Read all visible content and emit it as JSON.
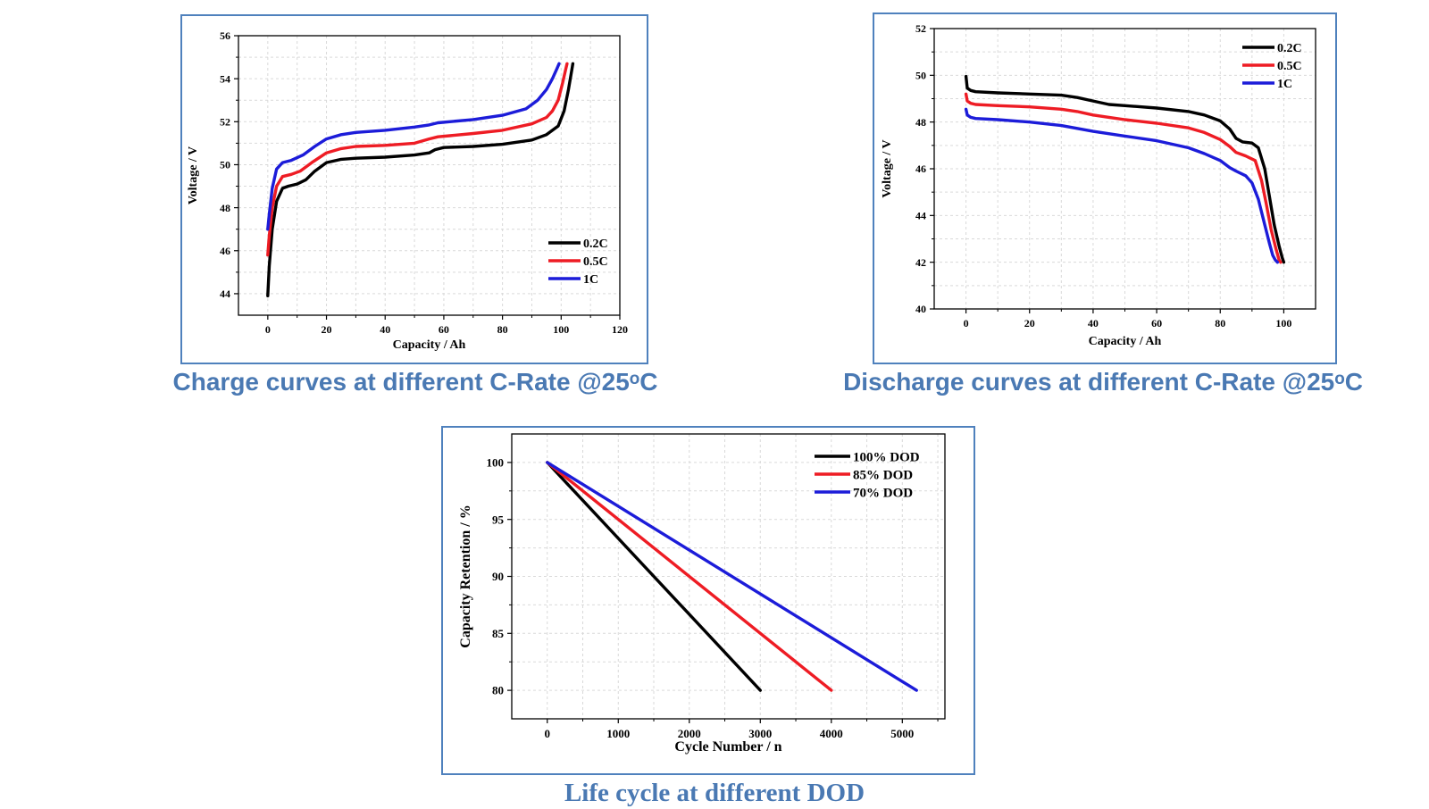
{
  "colors": {
    "black": "#000000",
    "red": "#ee1c24",
    "blue": "#1c1cd9",
    "caption": "#4a79b3",
    "frame": "#4f81bd"
  },
  "captions": {
    "charge": "Charge curves at different C-Rate @25ᵒC",
    "discharge": "Discharge curves at different C-Rate @25ᵒC",
    "life": "Life cycle at different DOD"
  },
  "chart_data": [
    {
      "id": "charge",
      "type": "line",
      "xlabel": "Capacity / Ah",
      "ylabel": "Voltage / V",
      "xlim": [
        -10,
        120
      ],
      "ylim": [
        43,
        56
      ],
      "xticks": [
        0,
        20,
        40,
        60,
        80,
        100,
        120
      ],
      "yticks": [
        44,
        46,
        48,
        50,
        52,
        54,
        56
      ],
      "grid": true,
      "legend_position": "bottom-right",
      "series": [
        {
          "name": "0.2C",
          "color": "#000000",
          "x": [
            0,
            0.5,
            1.5,
            3,
            5,
            7,
            10,
            13,
            16,
            20,
            25,
            30,
            40,
            50,
            55,
            57,
            60,
            70,
            80,
            90,
            95,
            99,
            101,
            102.5,
            103.5,
            104
          ],
          "y": [
            43.9,
            45.3,
            47.0,
            48.3,
            48.9,
            49.0,
            49.1,
            49.3,
            49.7,
            50.1,
            50.25,
            50.3,
            50.35,
            50.45,
            50.55,
            50.7,
            50.8,
            50.85,
            50.95,
            51.15,
            51.4,
            51.8,
            52.5,
            53.5,
            54.3,
            54.7
          ]
        },
        {
          "name": "0.5C",
          "color": "#ee1c24",
          "x": [
            0,
            0.5,
            1.5,
            3,
            5,
            8,
            11,
            15,
            20,
            25,
            30,
            40,
            50,
            55,
            58,
            62,
            70,
            80,
            90,
            95,
            97,
            99,
            100.5,
            101.5,
            102
          ],
          "y": [
            45.8,
            46.7,
            48.0,
            49.0,
            49.45,
            49.55,
            49.7,
            50.1,
            50.55,
            50.75,
            50.85,
            50.9,
            51.0,
            51.2,
            51.3,
            51.35,
            51.45,
            51.6,
            51.9,
            52.2,
            52.5,
            53.0,
            53.8,
            54.4,
            54.7
          ]
        },
        {
          "name": "1C",
          "color": "#1c1cd9",
          "x": [
            0,
            0.5,
            1.5,
            3,
            5,
            8,
            12,
            16,
            20,
            25,
            30,
            40,
            50,
            55,
            58,
            62,
            70,
            80,
            88,
            92,
            95,
            97,
            98.5,
            99.3
          ],
          "y": [
            47.0,
            47.7,
            48.9,
            49.8,
            50.1,
            50.2,
            50.45,
            50.85,
            51.2,
            51.4,
            51.5,
            51.6,
            51.75,
            51.85,
            51.95,
            52.0,
            52.1,
            52.3,
            52.6,
            53.0,
            53.5,
            54.0,
            54.45,
            54.7
          ]
        }
      ]
    },
    {
      "id": "discharge",
      "type": "line",
      "xlabel": "Capacity / Ah",
      "ylabel": "Voltage / V",
      "xlim": [
        -10,
        110
      ],
      "ylim": [
        40,
        52
      ],
      "xticks": [
        0,
        20,
        40,
        60,
        80,
        100
      ],
      "yticks": [
        40,
        42,
        44,
        46,
        48,
        50,
        52
      ],
      "grid": true,
      "legend_position": "top-right",
      "series": [
        {
          "name": "0.2C",
          "color": "#000000",
          "x": [
            0,
            0.4,
            1.5,
            3,
            10,
            20,
            30,
            35,
            40,
            45,
            50,
            60,
            70,
            75,
            80,
            83,
            85,
            87,
            90,
            92,
            94,
            95.5,
            97,
            98.5,
            99.5,
            100
          ],
          "y": [
            49.95,
            49.45,
            49.35,
            49.3,
            49.25,
            49.2,
            49.15,
            49.05,
            48.9,
            48.75,
            48.7,
            48.6,
            48.45,
            48.3,
            48.05,
            47.7,
            47.3,
            47.15,
            47.1,
            46.9,
            46.0,
            44.8,
            43.6,
            42.7,
            42.2,
            42.0
          ]
        },
        {
          "name": "0.5C",
          "color": "#ee1c24",
          "x": [
            0,
            0.4,
            1.5,
            3,
            10,
            20,
            30,
            35,
            40,
            45,
            50,
            60,
            70,
            75,
            80,
            83,
            85,
            88,
            91,
            93,
            94.5,
            96,
            97.5,
            98.5,
            99
          ],
          "y": [
            49.2,
            48.9,
            48.8,
            48.75,
            48.7,
            48.65,
            48.55,
            48.45,
            48.3,
            48.2,
            48.1,
            47.95,
            47.75,
            47.55,
            47.25,
            46.95,
            46.7,
            46.55,
            46.35,
            45.5,
            44.5,
            43.4,
            42.6,
            42.1,
            42.0
          ]
        },
        {
          "name": "1C",
          "color": "#1c1cd9",
          "x": [
            0,
            0.4,
            1.5,
            3,
            10,
            20,
            30,
            40,
            50,
            60,
            70,
            75,
            80,
            83,
            85,
            88,
            90,
            92,
            94,
            95.5,
            96.5,
            97.3,
            98
          ],
          "y": [
            48.55,
            48.3,
            48.2,
            48.15,
            48.1,
            48.0,
            47.85,
            47.6,
            47.4,
            47.2,
            46.9,
            46.65,
            46.35,
            46.05,
            45.9,
            45.7,
            45.4,
            44.7,
            43.6,
            42.8,
            42.3,
            42.1,
            42.0
          ]
        }
      ]
    },
    {
      "id": "life",
      "type": "line",
      "xlabel": "Cycle Number / n",
      "ylabel": "Capacity Retention / %",
      "xlim": [
        -500,
        5600
      ],
      "ylim": [
        77.5,
        102.5
      ],
      "xticks": [
        0,
        1000,
        2000,
        3000,
        4000,
        5000
      ],
      "yticks": [
        80,
        85,
        90,
        95,
        100
      ],
      "grid": true,
      "legend_position": "top-right",
      "series": [
        {
          "name": "100% DOD",
          "color": "#000000",
          "x": [
            0,
            3000
          ],
          "y": [
            100,
            80
          ]
        },
        {
          "name": "85% DOD",
          "color": "#ee1c24",
          "x": [
            0,
            4000
          ],
          "y": [
            100,
            80
          ]
        },
        {
          "name": "70% DOD",
          "color": "#1c1cd9",
          "x": [
            0,
            5200
          ],
          "y": [
            100,
            80
          ]
        }
      ]
    }
  ]
}
